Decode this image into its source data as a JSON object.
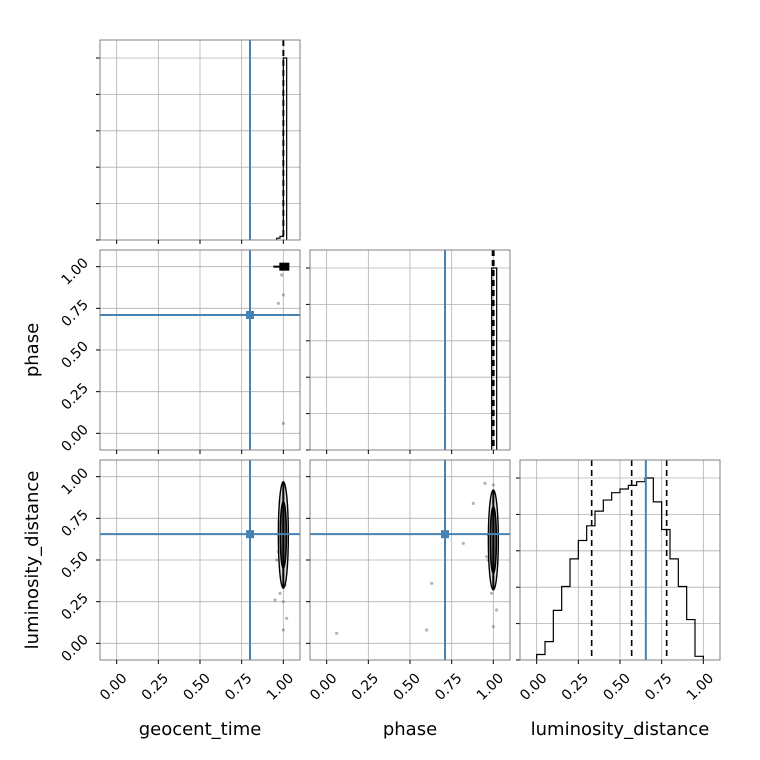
{
  "chart_data": {
    "type": "corner",
    "parameters": [
      "geocent_time",
      "phase",
      "luminosity_distance"
    ],
    "axis_labels": {
      "geocent_time": "geocent_time",
      "phase": "phase",
      "luminosity_distance": "luminosity_distance"
    },
    "axis_range": [
      -0.1,
      1.1
    ],
    "ticks": [
      0.0,
      0.25,
      0.5,
      0.75,
      1.0
    ],
    "tick_labels": [
      "0.00",
      "0.25",
      "0.50",
      "0.75",
      "1.00"
    ],
    "grid": true,
    "truth_color": "#4682b4",
    "hist_color": "#000000",
    "truths": {
      "geocent_time": 0.8,
      "phase": 0.71,
      "luminosity_distance": 0.655
    },
    "histograms": {
      "geocent_time": {
        "bin_edges": [
          0.96,
          0.98,
          1.0,
          1.02
        ],
        "counts": [
          0.01,
          0.02,
          1.0
        ],
        "quantiles": [
          0.999,
          1.0,
          1.001
        ]
      },
      "phase": {
        "bin_edges": [
          0.99,
          1.005,
          1.02
        ],
        "counts": [
          1.0,
          1.0
        ],
        "quantiles": [
          0.995,
          1.0,
          1.003
        ]
      },
      "luminosity_distance": {
        "bin_edges": [
          0.0,
          0.05,
          0.1,
          0.15,
          0.2,
          0.25,
          0.3,
          0.35,
          0.4,
          0.45,
          0.5,
          0.55,
          0.6,
          0.65,
          0.7,
          0.75,
          0.8,
          0.85,
          0.9,
          0.95,
          1.0
        ],
        "counts": [
          0.03,
          0.1,
          0.27,
          0.4,
          0.55,
          0.65,
          0.73,
          0.81,
          0.87,
          0.91,
          0.93,
          0.95,
          0.97,
          0.99,
          0.86,
          0.71,
          0.55,
          0.4,
          0.22,
          0.02
        ],
        "quantiles": [
          0.33,
          0.57,
          0.78
        ]
      }
    },
    "scatter_2d": {
      "phase_vs_geocent_time": {
        "x": [
          1.0,
          1.0,
          0.99,
          1.01,
          0.98,
          1.0,
          0.97,
          1.0,
          0.99
        ],
        "y": [
          1.0,
          0.99,
          1.0,
          1.01,
          1.0,
          0.83,
          0.78,
          0.06,
          0.95
        ]
      },
      "luminosity_distance_vs_geocent_time": {
        "x": [
          1.0,
          0.98,
          1.01,
          0.99,
          1.02,
          1.0,
          0.97,
          0.96,
          1.0,
          0.99,
          1.01,
          0.98,
          1.0,
          0.95,
          1.02,
          1.0,
          0.99,
          0.98
        ],
        "y": [
          0.95,
          0.85,
          0.78,
          0.7,
          0.65,
          0.6,
          0.55,
          0.5,
          0.45,
          0.4,
          0.35,
          0.3,
          0.25,
          0.26,
          0.15,
          0.08,
          0.62,
          0.72
        ]
      },
      "luminosity_distance_vs_phase": {
        "x": [
          1.0,
          0.99,
          1.01,
          0.98,
          1.0,
          0.97,
          1.0,
          0.99,
          1.02,
          1.0,
          0.95,
          0.88,
          0.82,
          0.63,
          0.6,
          0.06,
          0.96,
          0.97
        ],
        "y": [
          0.95,
          0.85,
          0.75,
          0.65,
          0.55,
          0.5,
          0.4,
          0.3,
          0.2,
          0.1,
          0.96,
          0.84,
          0.6,
          0.36,
          0.08,
          0.06,
          0.52,
          0.65
        ]
      }
    },
    "contours_2d": {
      "luminosity_distance_vs_geocent_time": {
        "center": [
          1.0,
          0.65
        ],
        "x_halfwidths": [
          0.004,
          0.009
        ],
        "y_halfwidths": [
          0.2,
          0.32
        ]
      },
      "luminosity_distance_vs_phase": {
        "center": [
          1.0,
          0.62
        ],
        "x_halfwidths": [
          0.004,
          0.009
        ],
        "y_halfwidths": [
          0.2,
          0.3
        ]
      }
    }
  }
}
